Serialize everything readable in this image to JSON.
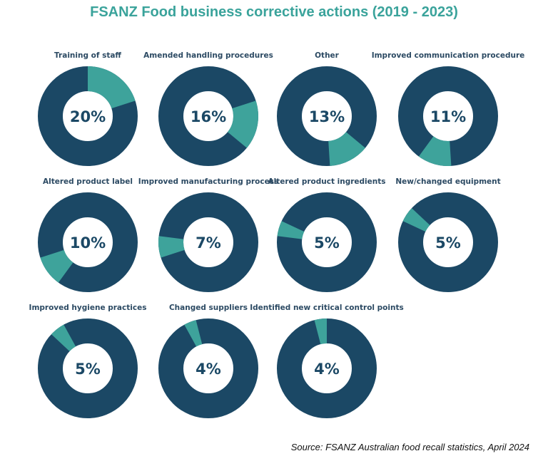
{
  "chart_data": {
    "type": "pie",
    "subtype": "donut-small-multiples",
    "title": "FSANZ Food business corrective actions (2019 - 2023)",
    "source": "Source: FSANZ Australian food recall statistics, April 2024",
    "colors": {
      "highlight": "#3ea39b",
      "remainder": "#1b4865",
      "title": "#3aa39b"
    },
    "categories": [
      "Training of staff",
      "Amended handling procedures",
      "Other",
      "Improved communication procedure",
      "Altered product label",
      "Improved manufacturing process",
      "Altered product ingredients",
      "New/changed equipment",
      "Improved hygiene practices",
      "Changed suppliers",
      "Identified new critical control points"
    ],
    "values": [
      20,
      16,
      13,
      11,
      10,
      7,
      5,
      5,
      5,
      4,
      4
    ],
    "value_labels": [
      "20%",
      "16%",
      "13%",
      "11%",
      "10%",
      "7%",
      "5%",
      "5%",
      "5%",
      "4%",
      "4%"
    ]
  }
}
